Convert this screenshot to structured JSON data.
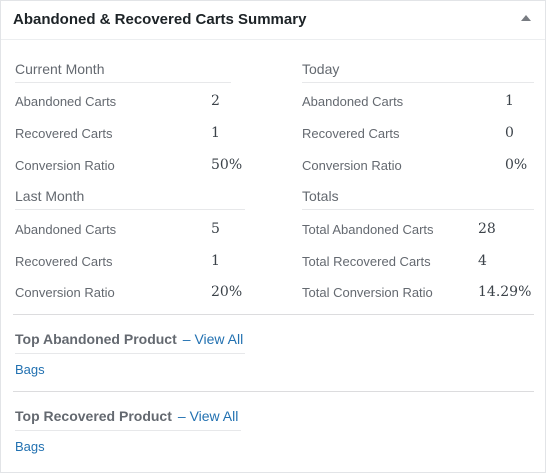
{
  "widget": {
    "title": "Abandoned & Recovered Carts Summary"
  },
  "current_month": {
    "heading": "Current Month",
    "rows": [
      {
        "label": "Abandoned Carts",
        "value": "2"
      },
      {
        "label": "Recovered Carts",
        "value": "1"
      },
      {
        "label": "Conversion Ratio",
        "value": "50%"
      }
    ]
  },
  "today": {
    "heading": "Today",
    "rows": [
      {
        "label": "Abandoned Carts",
        "value": "1"
      },
      {
        "label": "Recovered Carts",
        "value": "0"
      },
      {
        "label": "Conversion Ratio",
        "value": "0%"
      }
    ]
  },
  "last_month": {
    "heading": "Last Month",
    "rows": [
      {
        "label": "Abandoned Carts",
        "value": "5"
      },
      {
        "label": "Recovered Carts",
        "value": "1"
      },
      {
        "label": "Conversion Ratio",
        "value": "20%"
      }
    ]
  },
  "totals": {
    "heading": "Totals",
    "rows": [
      {
        "label": "Total Abandoned Carts",
        "value": "28"
      },
      {
        "label": "Total Recovered Carts",
        "value": "4"
      },
      {
        "label": "Total Conversion Ratio",
        "value": "14.29%"
      }
    ]
  },
  "top_abandoned": {
    "title": "Top Abandoned Product",
    "dash": "–",
    "view_all": "View All",
    "product": "Bags"
  },
  "top_recovered": {
    "title": "Top Recovered Product",
    "dash": "–",
    "view_all": "View All",
    "product": "Bags"
  },
  "icons": {
    "toggle": "caret-up-icon"
  }
}
